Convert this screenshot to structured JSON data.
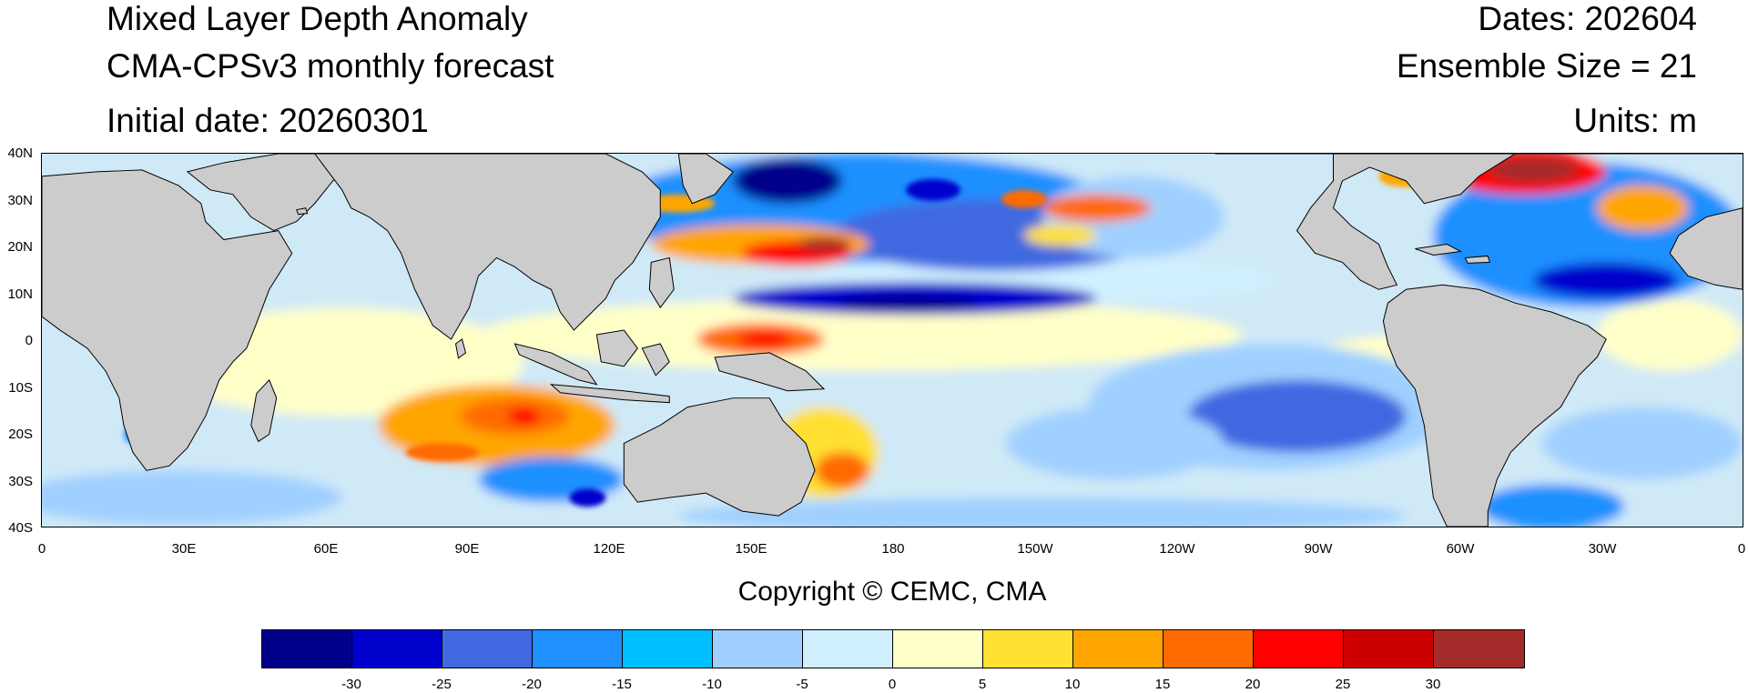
{
  "title_left": [
    "Mixed Layer Depth Anomaly",
    "CMA-CPSv3 monthly forecast",
    "Initial date: 20260301"
  ],
  "title_right": [
    "Dates: 202604",
    "Ensemble Size = 21",
    "Units: m"
  ],
  "map": {
    "lat_labels": [
      "40N",
      "30N",
      "20N",
      "10N",
      "0",
      "10S",
      "20S",
      "30S",
      "40S"
    ],
    "lon_labels": [
      "0",
      "30E",
      "60E",
      "90E",
      "120E",
      "150E",
      "180",
      "150W",
      "120W",
      "90W",
      "60W",
      "30W",
      "0"
    ],
    "land_color": "#cccccc",
    "ocean_base_color": "#cfe9f7"
  },
  "copyright": "Copyright © CEMC, CMA",
  "colorbar": {
    "colors": [
      "#00008b",
      "#0000cd",
      "#4169e1",
      "#1e90ff",
      "#00bfff",
      "#a0d0ff",
      "#d0f0ff",
      "#ffffc8",
      "#ffe033",
      "#ffa500",
      "#ff6a00",
      "#ff0000",
      "#cc0000",
      "#a52a2a"
    ],
    "labels": [
      "-30",
      "-25",
      "-20",
      "-15",
      "-10",
      "-5",
      "0",
      "5",
      "10",
      "15",
      "20",
      "25",
      "30"
    ]
  }
}
